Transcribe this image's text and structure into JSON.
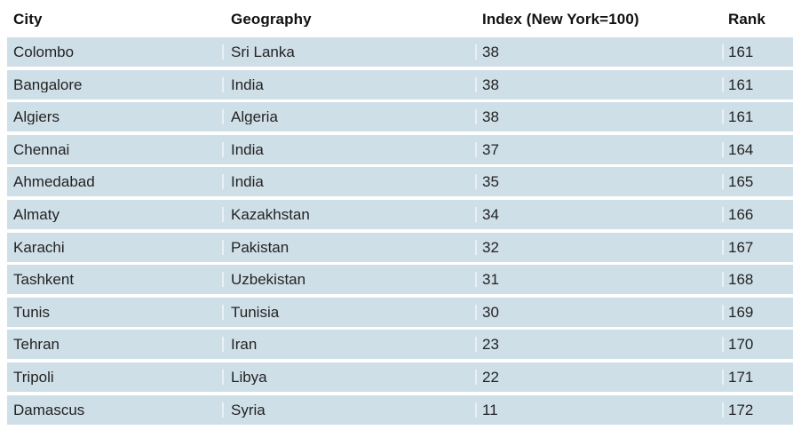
{
  "colors": {
    "row_background": "#cfdfe8",
    "row_gap": "#ffffff",
    "header_text": "#111111",
    "body_text": "#232323",
    "column_separator": "#ffffff"
  },
  "table": {
    "columns": [
      {
        "key": "city",
        "label": "City"
      },
      {
        "key": "geography",
        "label": "Geography"
      },
      {
        "key": "index",
        "label": "Index (New York=100)"
      },
      {
        "key": "rank",
        "label": "Rank"
      }
    ],
    "rows": [
      {
        "city": "Colombo",
        "geography": "Sri Lanka",
        "index": "38",
        "rank": "161"
      },
      {
        "city": "Bangalore",
        "geography": "India",
        "index": "38",
        "rank": "161"
      },
      {
        "city": "Algiers",
        "geography": "Algeria",
        "index": "38",
        "rank": "161"
      },
      {
        "city": "Chennai",
        "geography": "India",
        "index": "37",
        "rank": "164"
      },
      {
        "city": "Ahmedabad",
        "geography": "India",
        "index": "35",
        "rank": "165"
      },
      {
        "city": "Almaty",
        "geography": "Kazakhstan",
        "index": "34",
        "rank": "166"
      },
      {
        "city": "Karachi",
        "geography": "Pakistan",
        "index": "32",
        "rank": "167"
      },
      {
        "city": "Tashkent",
        "geography": "Uzbekistan",
        "index": "31",
        "rank": "168"
      },
      {
        "city": "Tunis",
        "geography": "Tunisia",
        "index": "30",
        "rank": "169"
      },
      {
        "city": "Tehran",
        "geography": "Iran",
        "index": "23",
        "rank": "170"
      },
      {
        "city": "Tripoli",
        "geography": "Libya",
        "index": "22",
        "rank": "171"
      },
      {
        "city": "Damascus",
        "geography": "Syria",
        "index": "11",
        "rank": "172"
      }
    ]
  }
}
